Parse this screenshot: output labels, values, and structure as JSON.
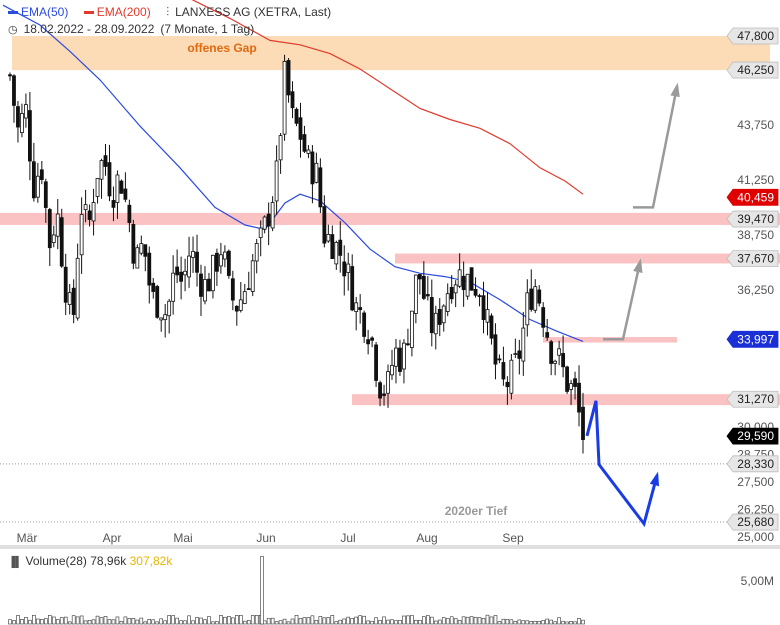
{
  "legend": {
    "ema50": "EMA(50)",
    "ema200": "EMA(200)",
    "instrument": "LANXESS AG (XETRA, Last)",
    "range": "18.02.2022 - 28.09.2022",
    "period": "(7 Monate, 1 Tag)"
  },
  "colors": {
    "ema50": "#2a4be0",
    "ema200": "#e23a2a",
    "zone_pink": "#f9b7b7",
    "zone_orange": "#fcd9b3",
    "arrow_grey": "#9a9a9a",
    "arrow_blue": "#1a3ce6",
    "vol_avg": "#e8b500"
  },
  "chart_data": {
    "type": "candlestick",
    "xlabels": [
      "Mär",
      "Apr",
      "Mai",
      "Jun",
      "Jul",
      "Aug",
      "Sep"
    ],
    "yticks": [
      {
        "v": 47.8,
        "t": "47,800",
        "style": "box"
      },
      {
        "v": 46.25,
        "t": "46,250",
        "style": "box"
      },
      {
        "v": 43.75,
        "t": "43,750",
        "style": "plain"
      },
      {
        "v": 41.25,
        "t": "41,250",
        "style": "plain"
      },
      {
        "v": 40.459,
        "t": "40,459",
        "style": "red"
      },
      {
        "v": 39.47,
        "t": "39,470",
        "style": "box"
      },
      {
        "v": 38.75,
        "t": "38,750",
        "style": "plain"
      },
      {
        "v": 37.67,
        "t": "37,670",
        "style": "box"
      },
      {
        "v": 36.25,
        "t": "36,250",
        "style": "plain"
      },
      {
        "v": 33.997,
        "t": "33,997",
        "style": "blue"
      },
      {
        "v": 31.27,
        "t": "31,270",
        "style": "box"
      },
      {
        "v": 30.0,
        "t": "30,000",
        "style": "plain"
      },
      {
        "v": 29.59,
        "t": "29,590",
        "style": "black"
      },
      {
        "v": 28.75,
        "t": "28,750",
        "style": "plain"
      },
      {
        "v": 28.33,
        "t": "28,330",
        "style": "box"
      },
      {
        "v": 27.5,
        "t": "27,500",
        "style": "plain"
      },
      {
        "v": 26.25,
        "t": "26,250",
        "style": "plain"
      },
      {
        "v": 25.68,
        "t": "25,680",
        "style": "box"
      },
      {
        "v": 25.0,
        "t": "25,000",
        "style": "plain"
      }
    ],
    "zones": [
      {
        "lo": 46.25,
        "hi": 47.8,
        "kind": "orange",
        "label": "offenes Gap"
      },
      {
        "lo": 39.2,
        "hi": 39.75,
        "kind": "pink"
      },
      {
        "lo": 37.45,
        "hi": 37.9,
        "kind": "pink"
      },
      {
        "lo": 33.85,
        "hi": 34.1,
        "kind": "pink"
      },
      {
        "lo": 31.0,
        "hi": 31.5,
        "kind": "pink"
      }
    ],
    "dotted_levels": [
      28.33,
      25.68
    ],
    "annotation": {
      "text": "2020er Tief",
      "v": 25.95
    },
    "ohlc_anchor_closes": [
      46.0,
      43.5,
      44.5,
      41.0,
      42.0,
      38.3,
      39.8,
      36.6,
      34.6,
      40.2,
      39.0,
      41.6,
      42.2,
      40.6,
      41.5,
      39.8,
      37.5,
      38.4,
      35.9,
      35.6,
      35.1,
      37.2,
      36.5,
      38.2,
      36.8,
      36.4,
      37.2,
      38.3,
      36.0,
      35.5,
      36.4,
      37.6,
      38.5,
      39.8,
      41.5,
      46.0,
      44.0,
      43.3,
      42.0,
      41.6,
      38.8,
      38.5,
      38.0,
      37.0,
      35.5,
      35.0,
      34.2,
      32.0,
      31.6,
      33.5,
      33.0,
      35.0,
      37.2,
      35.5,
      34.3,
      35.5,
      36.5,
      37.0,
      36.8,
      36.5,
      36.3,
      34.3,
      32.6,
      31.8,
      32.4,
      33.5,
      35.8,
      36.5,
      35.0,
      33.5,
      33.0,
      32.0,
      31.5,
      29.6
    ],
    "ema50": {
      "x": [
        3,
        40,
        70,
        100,
        140,
        180,
        215,
        245,
        265,
        285,
        300,
        320,
        345,
        370,
        395,
        420,
        445,
        470,
        500,
        530,
        555,
        583
      ],
      "v": [
        49.2,
        48.3,
        47.1,
        45.8,
        43.7,
        41.8,
        40.0,
        39.2,
        39.0,
        40.2,
        40.6,
        40.3,
        39.3,
        38.1,
        37.3,
        37.0,
        36.85,
        36.6,
        35.8,
        34.9,
        34.4,
        33.9
      ]
    },
    "ema200": {
      "x": [
        190,
        230,
        270,
        300,
        330,
        360,
        390,
        420,
        450,
        480,
        510,
        540,
        565,
        583
      ],
      "v": [
        49.5,
        48.6,
        47.6,
        47.4,
        47.0,
        46.3,
        45.4,
        44.5,
        44.0,
        43.6,
        42.9,
        41.8,
        41.2,
        40.6
      ]
    },
    "arrows": [
      {
        "color": "grey",
        "x": [
          633,
          653,
          677
        ],
        "v": [
          40.0,
          40.0,
          45.5
        ]
      },
      {
        "color": "grey",
        "x": [
          603,
          623,
          640
        ],
        "v": [
          34.0,
          34.0,
          37.5
        ]
      },
      {
        "color": "blue",
        "x": [
          587,
          596,
          599,
          644,
          657
        ],
        "v": [
          29.6,
          31.2,
          28.3,
          25.6,
          27.8
        ]
      }
    ],
    "volume": {
      "label": "Volume(28)",
      "value": "78,96k",
      "avg": "307,82k",
      "ytick": "5,00M",
      "spike_x": 262,
      "spike_ratio": 0.95
    }
  }
}
